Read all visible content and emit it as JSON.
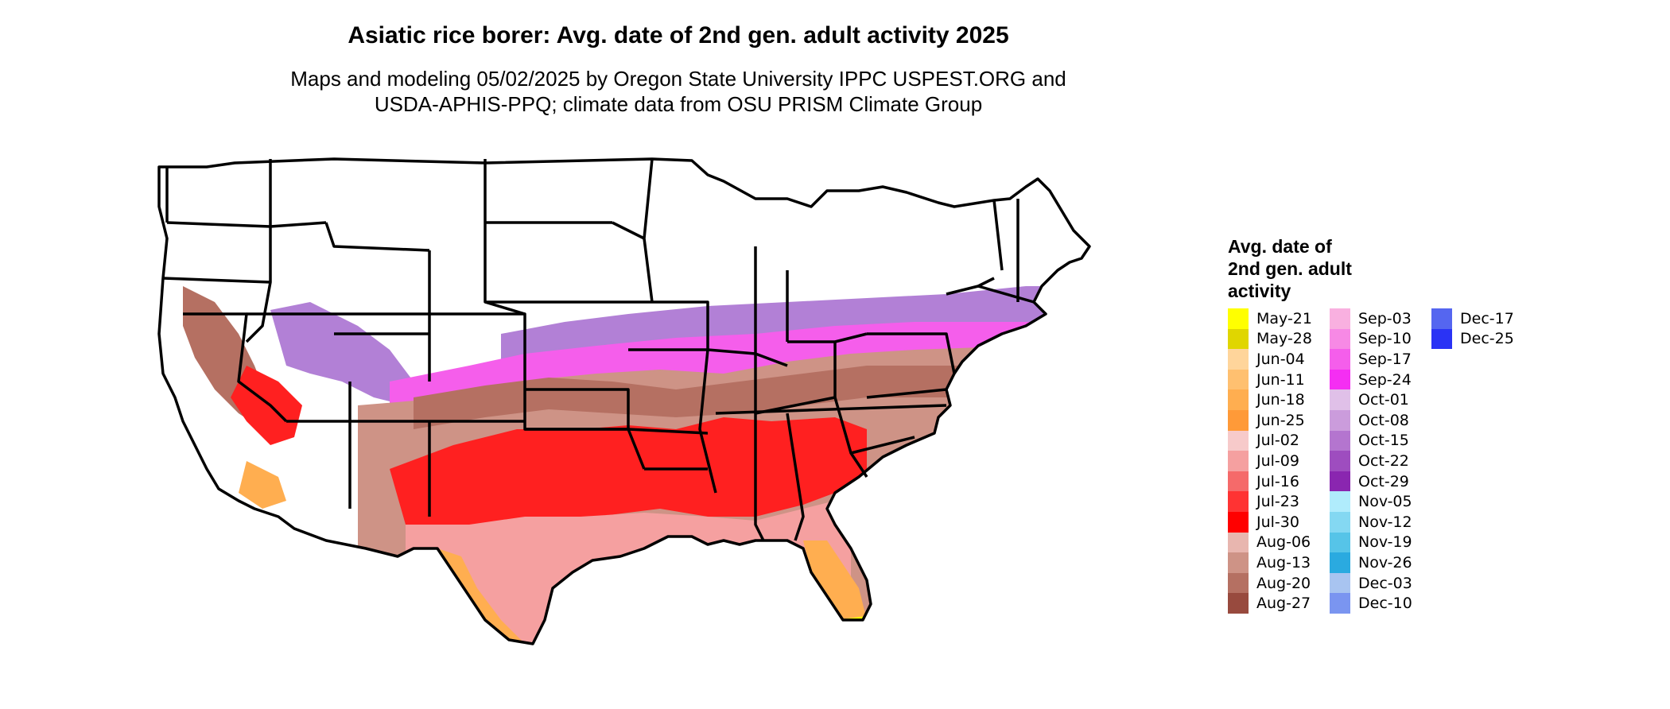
{
  "title": "Asiatic rice borer: Avg. date of 2nd gen. adult activity 2025",
  "subtitle_lines": [
    "Maps and modeling 05/02/2025 by Oregon State University IPPC USPEST.ORG and",
    "USDA-APHIS-PPQ; climate data from OSU PRISM Climate Group"
  ],
  "legend": {
    "title_lines": [
      "Avg. date of",
      "2nd gen. adult",
      "activity"
    ],
    "columns": [
      [
        {
          "label": "May-21",
          "color": "#FFFF00"
        },
        {
          "label": "May-28",
          "color": "#E0D600"
        },
        {
          "label": "Jun-04",
          "color": "#FFD59B"
        },
        {
          "label": "Jun-11",
          "color": "#FFC070"
        },
        {
          "label": "Jun-18",
          "color": "#FFAE50"
        },
        {
          "label": "Jun-25",
          "color": "#FF9A38"
        },
        {
          "label": "Jul-02",
          "color": "#F7CACA"
        },
        {
          "label": "Jul-09",
          "color": "#F5A0A0"
        },
        {
          "label": "Jul-16",
          "color": "#F56A6A"
        },
        {
          "label": "Jul-23",
          "color": "#FF3333"
        },
        {
          "label": "Jul-30",
          "color": "#FF0000"
        },
        {
          "label": "Aug-06",
          "color": "#E8B6AF"
        },
        {
          "label": "Aug-13",
          "color": "#CE9386"
        },
        {
          "label": "Aug-20",
          "color": "#B57062"
        },
        {
          "label": "Aug-27",
          "color": "#984A3E"
        }
      ],
      [
        {
          "label": "Sep-03",
          "color": "#F9B0E0"
        },
        {
          "label": "Sep-10",
          "color": "#F789E5"
        },
        {
          "label": "Sep-17",
          "color": "#F55EEB"
        },
        {
          "label": "Sep-24",
          "color": "#F52EF3"
        },
        {
          "label": "Oct-01",
          "color": "#E0C0E8"
        },
        {
          "label": "Oct-08",
          "color": "#CB9CDC"
        },
        {
          "label": "Oct-15",
          "color": "#B475CF"
        },
        {
          "label": "Oct-22",
          "color": "#9E4DBF"
        },
        {
          "label": "Oct-29",
          "color": "#8A26B0"
        },
        {
          "label": "Nov-05",
          "color": "#B0ECFC"
        },
        {
          "label": "Nov-12",
          "color": "#84D8F2"
        },
        {
          "label": "Nov-19",
          "color": "#56C4E8"
        },
        {
          "label": "Nov-26",
          "color": "#2AAAE0"
        },
        {
          "label": "Dec-03",
          "color": "#A8C4F0"
        },
        {
          "label": "Dec-10",
          "color": "#7A95F0"
        }
      ],
      [
        {
          "label": "Dec-17",
          "color": "#5566F0"
        },
        {
          "label": "Dec-25",
          "color": "#2A33F5"
        }
      ]
    ]
  },
  "map_colors": {
    "none": "#FFFFFF",
    "purple_band": "#B280D6",
    "magenta_band": "#F55EEB",
    "brown_band": "#B57062",
    "light_brown": "#CE9386",
    "red_band": "#FF2020",
    "pink_band": "#F5A0A0",
    "orange_band": "#FFAE50",
    "yellow_tip": "#FFFF00",
    "border": "#000000"
  }
}
